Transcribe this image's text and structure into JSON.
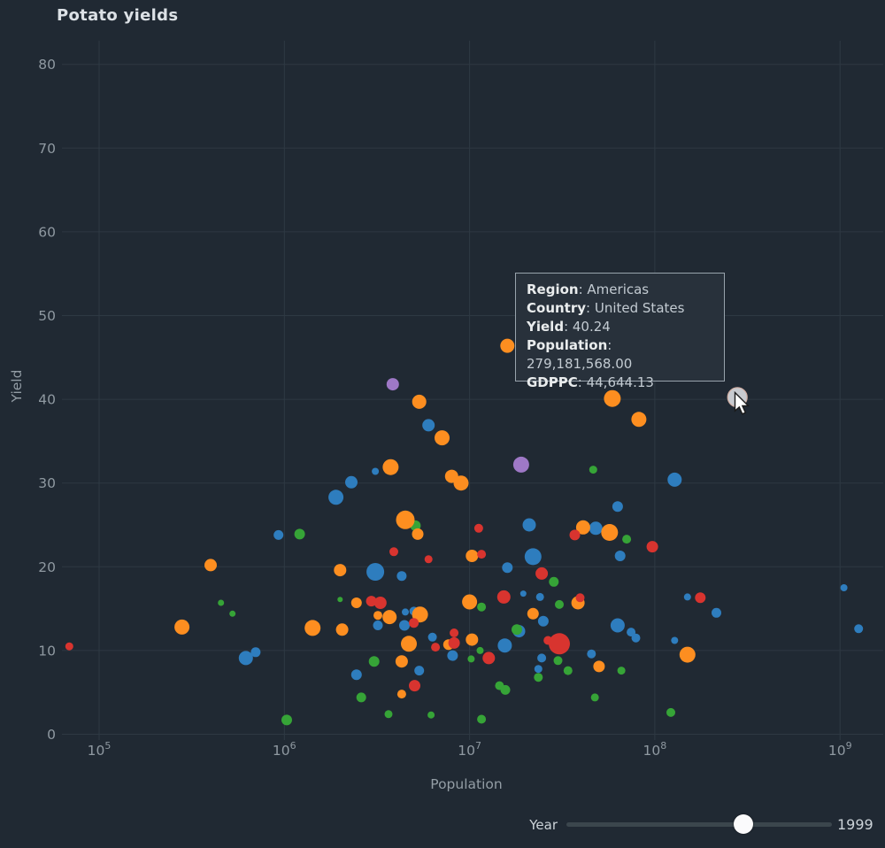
{
  "title": "Potato yields",
  "tooltip": {
    "rows": [
      {
        "label": "Region",
        "value": "Americas"
      },
      {
        "label": "Country",
        "value": "United States"
      },
      {
        "label": "Yield",
        "value": "40.24"
      },
      {
        "label": "Population",
        "value": "279,181,568.00"
      },
      {
        "label": "GDPPC",
        "value": "44,644.13"
      }
    ]
  },
  "slider": {
    "label": "Year",
    "value": "1999"
  },
  "colors": {
    "background": "#202933",
    "grid": "#2e3943",
    "tick_text": "#8f99a1",
    "axis_label_text": "#939da5",
    "title_text": "#dce1e6",
    "tooltip_bg": "#28313b",
    "tooltip_border": "#98a3ac",
    "slider_track": "#3b464d",
    "slider_thumb": "#fbfbfc",
    "highlight_fill": "#c8cbd0",
    "highlight_ring": "#d2afa4"
  },
  "chart_data": {
    "type": "scatter",
    "title": "Potato yields",
    "xlabel": "Population",
    "ylabel": "Yield",
    "x_scale": "log",
    "xlim": [
      65000,
      1300000000
    ],
    "ylim": [
      0,
      83
    ],
    "x_tick_base": "10",
    "x_tick_exponents": [
      "5",
      "6",
      "7",
      "8",
      "9"
    ],
    "x_ticks": [
      100000,
      1000000,
      10000000,
      100000000,
      1000000000
    ],
    "y_ticks": [
      0,
      10,
      20,
      30,
      40,
      50,
      60,
      70,
      80
    ],
    "grid": true,
    "legend": "none",
    "point_format": [
      "population",
      "yield",
      "radius_px"
    ],
    "series": [
      {
        "name": "blue",
        "color": "#2e7dbe",
        "points": [
          [
            6000000,
            36.9,
            7
          ],
          [
            3100000,
            31.4,
            4
          ],
          [
            2300000,
            30.1,
            7
          ],
          [
            1900000,
            28.3,
            8.5
          ],
          [
            128000000,
            30.4,
            8
          ],
          [
            930000,
            23.8,
            5.5
          ],
          [
            21000000,
            25.0,
            7.5
          ],
          [
            48000000,
            24.6,
            7.5
          ],
          [
            65000000,
            21.3,
            6
          ],
          [
            22000000,
            21.2,
            9.5
          ],
          [
            3100000,
            19.4,
            10
          ],
          [
            4300000,
            18.9,
            5.5
          ],
          [
            16000000,
            19.9,
            6
          ],
          [
            63000000,
            27.2,
            6
          ],
          [
            19500000,
            16.8,
            3.5
          ],
          [
            24000000,
            16.4,
            4.5
          ],
          [
            4500000,
            14.6,
            4
          ],
          [
            5000000,
            14.7,
            5
          ],
          [
            150000000,
            16.4,
            4
          ],
          [
            215000000,
            14.5,
            5.5
          ],
          [
            1050000000,
            17.5,
            4
          ],
          [
            1260000000,
            12.6,
            5
          ],
          [
            3200000,
            13.0,
            5.5
          ],
          [
            4450000,
            13.0,
            6
          ],
          [
            6300000,
            11.6,
            5
          ],
          [
            8100000,
            9.4,
            6
          ],
          [
            2450000,
            7.1,
            6
          ],
          [
            5350000,
            7.6,
            5.5
          ],
          [
            25000000,
            13.5,
            6
          ],
          [
            18500000,
            12.3,
            7
          ],
          [
            15500000,
            10.6,
            8
          ],
          [
            24500000,
            9.1,
            5
          ],
          [
            23500000,
            7.8,
            4.5
          ],
          [
            45500000,
            9.6,
            5
          ],
          [
            63000000,
            13.0,
            8
          ],
          [
            74500000,
            12.2,
            5
          ],
          [
            79000000,
            11.5,
            5
          ],
          [
            128000000,
            11.2,
            4
          ],
          [
            620000,
            9.1,
            8
          ],
          [
            700000,
            9.8,
            5.5
          ]
        ]
      },
      {
        "name": "green",
        "color": "#36a437",
        "points": [
          [
            1210000,
            23.9,
            6
          ],
          [
            5100000,
            24.9,
            6
          ],
          [
            46500000,
            31.6,
            4.5
          ],
          [
            70500000,
            23.3,
            5
          ],
          [
            28500000,
            18.2,
            5.5
          ],
          [
            11600000,
            15.2,
            5
          ],
          [
            30500000,
            15.5,
            5
          ],
          [
            2000000,
            16.1,
            3
          ],
          [
            455000,
            15.7,
            3.5
          ],
          [
            525000,
            14.4,
            3.5
          ],
          [
            3050000,
            8.7,
            6
          ],
          [
            2600000,
            4.4,
            5.5
          ],
          [
            3650000,
            2.4,
            4.5
          ],
          [
            1030000,
            1.7,
            6
          ],
          [
            6200000,
            2.3,
            4
          ],
          [
            18000000,
            12.5,
            6
          ],
          [
            11400000,
            10.0,
            4
          ],
          [
            10200000,
            9.0,
            4
          ],
          [
            30000000,
            8.8,
            5
          ],
          [
            23500000,
            6.8,
            5
          ],
          [
            34000000,
            7.6,
            5
          ],
          [
            66000000,
            7.6,
            4.5
          ],
          [
            14500000,
            5.8,
            5
          ],
          [
            15600000,
            5.3,
            5.5
          ],
          [
            47500000,
            4.4,
            4.5
          ],
          [
            122000000,
            2.6,
            5
          ],
          [
            11600000,
            1.8,
            5
          ]
        ]
      },
      {
        "name": "orange",
        "color": "#fd8e20",
        "points": [
          [
            5350000,
            39.7,
            8
          ],
          [
            7100000,
            35.4,
            8.5
          ],
          [
            3750000,
            31.9,
            9
          ],
          [
            8000000,
            30.8,
            7.5
          ],
          [
            9000000,
            30.0,
            8.5
          ],
          [
            16000000,
            46.4,
            8
          ],
          [
            59000000,
            40.1,
            9.5
          ],
          [
            82000000,
            37.6,
            8.5
          ],
          [
            4500000,
            25.6,
            10.5
          ],
          [
            5250000,
            23.9,
            6.5
          ],
          [
            2000000,
            19.6,
            7
          ],
          [
            400000,
            20.2,
            7
          ],
          [
            41000000,
            24.7,
            8
          ],
          [
            57000000,
            24.1,
            9.5
          ],
          [
            10300000,
            21.3,
            7
          ],
          [
            10000000,
            15.8,
            8.5
          ],
          [
            38500000,
            15.7,
            7.5
          ],
          [
            22000000,
            14.4,
            6.5
          ],
          [
            2450000,
            15.7,
            6
          ],
          [
            1420000,
            12.7,
            9
          ],
          [
            2050000,
            12.5,
            7
          ],
          [
            3200000,
            14.2,
            5
          ],
          [
            3700000,
            14.0,
            8
          ],
          [
            5400000,
            14.3,
            9
          ],
          [
            4700000,
            10.8,
            9
          ],
          [
            7700000,
            10.7,
            6
          ],
          [
            10300000,
            11.3,
            7
          ],
          [
            4300000,
            8.7,
            7
          ],
          [
            4300000,
            4.8,
            5
          ],
          [
            50000000,
            8.1,
            6.5
          ],
          [
            150000000,
            9.5,
            9
          ],
          [
            280000,
            12.8,
            8.5
          ]
        ]
      },
      {
        "name": "red",
        "color": "#d8342f",
        "points": [
          [
            3900000,
            21.8,
            5
          ],
          [
            6000000,
            20.9,
            4.5
          ],
          [
            37000000,
            23.8,
            6
          ],
          [
            97000000,
            22.4,
            6.5
          ],
          [
            24500000,
            19.2,
            7
          ],
          [
            11200000,
            24.6,
            5
          ],
          [
            11600000,
            21.5,
            5
          ],
          [
            15300000,
            16.4,
            7.5
          ],
          [
            39500000,
            16.3,
            5
          ],
          [
            2950000,
            15.9,
            6
          ],
          [
            3300000,
            15.7,
            7
          ],
          [
            176000000,
            16.3,
            6
          ],
          [
            5000000,
            13.3,
            5.5
          ],
          [
            6550000,
            10.4,
            5
          ],
          [
            8250000,
            12.1,
            5
          ],
          [
            8250000,
            10.9,
            6.5
          ],
          [
            12700000,
            9.1,
            7
          ],
          [
            26500000,
            11.2,
            5
          ],
          [
            30500000,
            10.8,
            12
          ],
          [
            5050000,
            5.8,
            6.5
          ],
          [
            69000,
            10.5,
            4.5
          ]
        ]
      },
      {
        "name": "purple",
        "color": "#9e78c6",
        "points": [
          [
            3850000,
            41.8,
            7
          ],
          [
            19000000,
            32.2,
            9
          ]
        ]
      }
    ],
    "highlighted_point": {
      "region": "Americas",
      "country": "United States",
      "yield": 40.24,
      "population": 279181568,
      "gdppc": "44,644.13",
      "radius_px": 11
    }
  }
}
